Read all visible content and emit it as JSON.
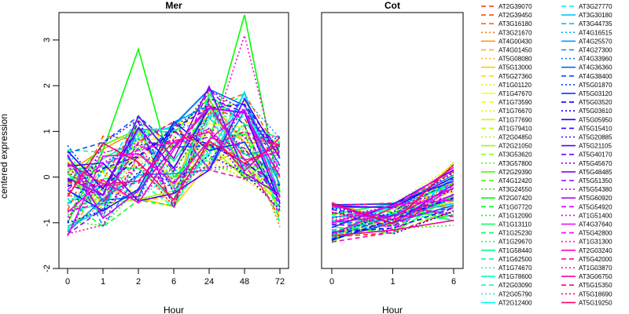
{
  "chart_data": {
    "type": "line",
    "ylabel": "centered expression",
    "ylim": [
      -2,
      3.6
    ],
    "yticks": [
      -2,
      -1,
      0,
      1,
      2,
      3
    ],
    "panels": [
      {
        "title": "Mer",
        "xlabel": "Hour",
        "categories": [
          "0",
          "1",
          "2",
          "6",
          "24",
          "48",
          "72"
        ]
      },
      {
        "title": "Cot",
        "xlabel": "Hour",
        "categories": [
          "0",
          "1",
          "6"
        ]
      }
    ],
    "legend": {
      "placement": "right",
      "columns": [
        [
          {
            "name": "AT2G39070",
            "color": "#ff3300",
            "dash": "dashed"
          },
          {
            "name": "AT2G39450",
            "color": "#ff4d00",
            "dash": "dashed"
          },
          {
            "name": "AT3G16180",
            "color": "#ff6600",
            "dash": "dashed"
          },
          {
            "name": "AT3G21670",
            "color": "#ff7a00",
            "dotted": true
          },
          {
            "name": "AT4G00430",
            "color": "#ff9900",
            "dash": "solid"
          },
          {
            "name": "AT4G01450",
            "color": "#ffaa00",
            "dash": "dashed"
          },
          {
            "name": "AT5G08080",
            "color": "#ffbb00",
            "dotted": true
          },
          {
            "name": "AT5G13000",
            "color": "#ffcc00",
            "dash": "solid"
          },
          {
            "name": "AT5G27360",
            "color": "#ffdd00",
            "dash": "dashed"
          },
          {
            "name": "AT1G01120",
            "color": "#ffee00",
            "dotted": true
          },
          {
            "name": "AT1G47670",
            "color": "#ffff00",
            "dash": "solid"
          },
          {
            "name": "AT1G73590",
            "color": "#eeff00",
            "dash": "dashed"
          },
          {
            "name": "AT1G76670",
            "color": "#ddff00",
            "dotted": true
          },
          {
            "name": "AT1G77690",
            "color": "#ccff00",
            "dash": "solid"
          },
          {
            "name": "AT1G79410",
            "color": "#bbff00",
            "dash": "dashed"
          },
          {
            "name": "AT2G04850",
            "color": "#aaff00",
            "dotted": true
          },
          {
            "name": "AT2G21050",
            "color": "#99ff00",
            "dash": "solid"
          },
          {
            "name": "AT3G53620",
            "color": "#88ff00",
            "dash": "dashed"
          },
          {
            "name": "AT3G57800",
            "color": "#66ff00",
            "dotted": true
          },
          {
            "name": "AT2G29390",
            "color": "#44ff00",
            "dash": "solid"
          },
          {
            "name": "AT4G12420",
            "color": "#33ff00",
            "dash": "dashed"
          },
          {
            "name": "AT3G24550",
            "color": "#22ff00",
            "dotted": true
          },
          {
            "name": "AT2G07420",
            "color": "#00ff00",
            "dash": "solid"
          },
          {
            "name": "AT1G07720",
            "color": "#00ff22",
            "dash": "dashed"
          },
          {
            "name": "AT1G12090",
            "color": "#00ff44",
            "dotted": true
          },
          {
            "name": "AT1G13110",
            "color": "#00ff55",
            "dash": "solid"
          },
          {
            "name": "AT1G25230",
            "color": "#00ff66",
            "dash": "dashed"
          },
          {
            "name": "AT1G29670",
            "color": "#00ff77",
            "dotted": true
          },
          {
            "name": "AT1G58440",
            "color": "#00ff88",
            "dash": "solid"
          },
          {
            "name": "AT1G62500",
            "color": "#00ff99",
            "dash": "dashed"
          },
          {
            "name": "AT1G74670",
            "color": "#00ffaa",
            "dotted": true
          },
          {
            "name": "AT1G78600",
            "color": "#00ffbb",
            "dash": "solid"
          },
          {
            "name": "AT2G03090",
            "color": "#00ffcc",
            "dash": "dashed"
          },
          {
            "name": "AT2G05790",
            "color": "#00ffdd",
            "dotted": true
          },
          {
            "name": "AT2G12400",
            "color": "#00ffee",
            "dash": "solid"
          }
        ],
        [
          {
            "name": "AT3G27770",
            "color": "#00eeff",
            "dash": "dashed"
          },
          {
            "name": "AT3G30180",
            "color": "#00ccff",
            "dash": "solid"
          },
          {
            "name": "AT3G44735",
            "color": "#00bbff",
            "dash": "dashed"
          },
          {
            "name": "AT4G16515",
            "color": "#00aaff",
            "dotted": true
          },
          {
            "name": "AT4G25570",
            "color": "#0099ff",
            "dash": "solid"
          },
          {
            "name": "AT4G27300",
            "color": "#0088ff",
            "dash": "dashed"
          },
          {
            "name": "AT4G33960",
            "color": "#0077ff",
            "dotted": true
          },
          {
            "name": "AT4G36360",
            "color": "#0066ff",
            "dash": "solid"
          },
          {
            "name": "AT4G38400",
            "color": "#0055ff",
            "dash": "dashed"
          },
          {
            "name": "AT5G01870",
            "color": "#0044ff",
            "dotted": true
          },
          {
            "name": "AT5G03120",
            "color": "#0022ff",
            "dash": "solid"
          },
          {
            "name": "AT5G03520",
            "color": "#0000ff",
            "dash": "dashed"
          },
          {
            "name": "AT5G03610",
            "color": "#1100ff",
            "dotted": true
          },
          {
            "name": "AT5G05950",
            "color": "#2200ff",
            "dash": "solid"
          },
          {
            "name": "AT5G15410",
            "color": "#3300ff",
            "dash": "dashed"
          },
          {
            "name": "AT5G20885",
            "color": "#4400ff",
            "dotted": true
          },
          {
            "name": "AT5G21105",
            "color": "#5500ff",
            "dash": "solid"
          },
          {
            "name": "AT5G40170",
            "color": "#6600ff",
            "dash": "dashed"
          },
          {
            "name": "AT5G45670",
            "color": "#7700ff",
            "dotted": true
          },
          {
            "name": "AT5G48485",
            "color": "#8800ff",
            "dash": "solid"
          },
          {
            "name": "AT5G51350",
            "color": "#9900ff",
            "dash": "dashed"
          },
          {
            "name": "AT5G54380",
            "color": "#aa00ff",
            "dotted": true
          },
          {
            "name": "AT5G60920",
            "color": "#bb00ff",
            "dash": "solid"
          },
          {
            "name": "AT5G54920",
            "color": "#cc00ff",
            "dash": "dashed"
          },
          {
            "name": "AT1G51400",
            "color": "#dd00ff",
            "dotted": true
          },
          {
            "name": "AT4G37640",
            "color": "#ee00ff",
            "dash": "solid"
          },
          {
            "name": "AT5G42800",
            "color": "#ff00ee",
            "dash": "dashed"
          },
          {
            "name": "AT1G31300",
            "color": "#ff00dd",
            "dotted": true
          },
          {
            "name": "AT2G03240",
            "color": "#ff00cc",
            "dash": "solid"
          },
          {
            "name": "AT5G42000",
            "color": "#ff00bb",
            "dash": "dashed"
          },
          {
            "name": "AT1G03870",
            "color": "#ff00aa",
            "dotted": true
          },
          {
            "name": "AT3G06750",
            "color": "#ff0099",
            "dash": "solid"
          },
          {
            "name": "AT5G15350",
            "color": "#ff0088",
            "dash": "dashed"
          },
          {
            "name": "AT5G18690",
            "color": "#ff0077",
            "dotted": true
          },
          {
            "name": "AT5G19250",
            "color": "#ff0066",
            "dash": "solid"
          }
        ]
      ]
    }
  }
}
